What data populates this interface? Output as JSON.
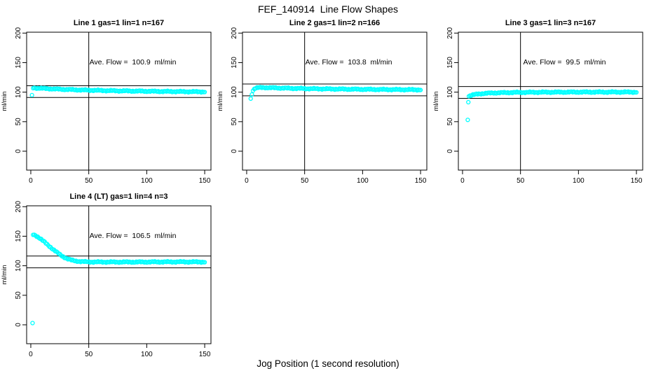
{
  "title": "FEF_140914  Line Flow Shapes",
  "colors": {
    "points": "#00FFFF",
    "axis": "#000000",
    "background": "#ffffff"
  },
  "chart_data": {
    "type": "scatter",
    "xlabel": "Jog Position (1 second resolution)",
    "shared": {
      "ylabel": "ml/min",
      "xticks": [
        0,
        50,
        100,
        150
      ],
      "yticks": [
        0,
        50,
        100,
        150,
        200
      ],
      "xlim_draw": [
        -3.6,
        155.4
      ],
      "ylim_draw": [
        -32,
        201.5
      ],
      "vline_x": 50,
      "marker": "open-circle",
      "annotation_anchor": {
        "x": 88,
        "y": 147
      }
    },
    "panels": [
      {
        "title": "Line 1 gas=1 lin=1 n=167",
        "n": 167,
        "ave_flow": 100.9,
        "annotation": "Ave. Flow =  100.9  ml/min",
        "ref_lines": [
          110.9,
          90.9
        ],
        "outliers": [
          [
            1,
            95
          ]
        ],
        "band_anchors": [
          [
            2,
            107.3
          ],
          [
            6,
            106.8
          ],
          [
            12,
            106.2
          ],
          [
            20,
            105.4
          ],
          [
            30,
            104.6
          ],
          [
            40,
            103.9
          ],
          [
            50,
            103.3
          ],
          [
            70,
            102.4
          ],
          [
            90,
            101.8
          ],
          [
            110,
            101.3
          ],
          [
            130,
            100.9
          ],
          [
            150,
            100.6
          ]
        ]
      },
      {
        "title": "Line 2 gas=1 lin=2 n=166",
        "n": 166,
        "ave_flow": 103.8,
        "annotation": "Ave. Flow =  103.8  ml/min",
        "ref_lines": [
          113.8,
          93.8
        ],
        "outliers": [
          [
            3.5,
            89
          ]
        ],
        "band_anchors": [
          [
            4.5,
            97
          ],
          [
            5.5,
            103
          ],
          [
            7,
            106.5
          ],
          [
            10,
            107.6
          ],
          [
            15,
            107.8
          ],
          [
            25,
            107.2
          ],
          [
            40,
            106.4
          ],
          [
            60,
            105.7
          ],
          [
            80,
            105.2
          ],
          [
            100,
            104.8
          ],
          [
            125,
            104.4
          ],
          [
            150,
            104.1
          ]
        ]
      },
      {
        "title": "Line 3 gas=1 lin=3 n=167",
        "n": 167,
        "ave_flow": 99.5,
        "annotation": "Ave. Flow =  99.5  ml/min",
        "ref_lines": [
          109.5,
          89.5
        ],
        "outliers": [
          [
            4.5,
            53
          ],
          [
            5,
            83
          ]
        ],
        "band_anchors": [
          [
            5.5,
            93.5
          ],
          [
            8,
            95
          ],
          [
            12,
            96.5
          ],
          [
            18,
            97.8
          ],
          [
            28,
            98.8
          ],
          [
            45,
            99.5
          ],
          [
            70,
            99.9
          ],
          [
            100,
            100.1
          ],
          [
            150,
            100.1
          ]
        ]
      },
      {
        "title": "Line 4 (LT) gas=1 lin=4 n=3",
        "n": 3,
        "ave_flow": 106.5,
        "annotation": "Ave. Flow =  106.5  ml/min",
        "ref_lines": [
          116.5,
          96.5
        ],
        "outliers": [
          [
            1.5,
            3
          ]
        ],
        "band_anchors": [
          [
            2,
            153
          ],
          [
            4,
            151.5
          ],
          [
            6,
            149
          ],
          [
            8,
            146
          ],
          [
            11,
            141.5
          ],
          [
            14,
            136.5
          ],
          [
            17,
            131.5
          ],
          [
            20,
            126.5
          ],
          [
            23,
            122
          ],
          [
            26,
            117.8
          ],
          [
            29,
            114.2
          ],
          [
            32,
            111.5
          ],
          [
            35,
            109.6
          ],
          [
            38,
            108.3
          ],
          [
            42,
            107.3
          ],
          [
            47,
            106.7
          ],
          [
            55,
            106.4
          ],
          [
            70,
            106.3
          ],
          [
            90,
            106.3
          ],
          [
            110,
            106.5
          ],
          [
            130,
            106.6
          ],
          [
            150,
            106.4
          ]
        ]
      }
    ]
  }
}
